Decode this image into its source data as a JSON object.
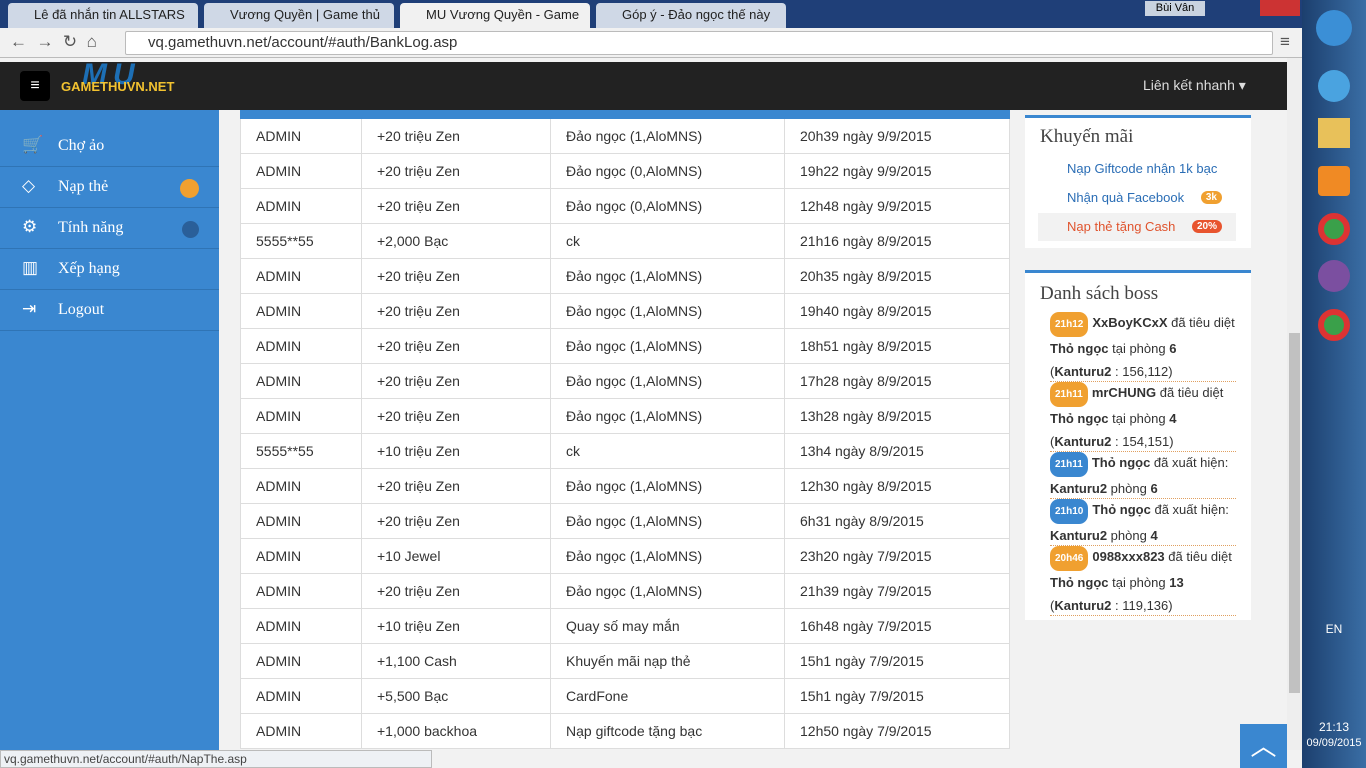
{
  "browser": {
    "tabs": [
      "Lê đã nhắn tin ALLSTARS",
      "Vương Quyền | Game thủ",
      "MU Vương Quyền - Game",
      "Góp ý - Đảo ngọc thế này"
    ],
    "user": "Bùi Vân",
    "url": "vq.gamethuvn.net/account/#auth/BankLog.asp",
    "status_url": "vq.gamethuvn.net/account/#auth/NapThe.asp"
  },
  "header": {
    "logo_top": "MU",
    "logo": "GAMETHUVN.NET",
    "quick_links": "Liên kết nhanh"
  },
  "sidebar": {
    "items": [
      "Chợ ảo",
      "Nạp thẻ",
      "Tính năng",
      "Xếp hạng",
      "Logout"
    ]
  },
  "table": {
    "rows": [
      [
        "ADMIN",
        "+20  triệu Zen",
        "Đảo ngọc (1,AloMNS)",
        "20h39 ngày 9/9/2015"
      ],
      [
        "ADMIN",
        "+20  triệu Zen",
        "Đảo ngọc (0,AloMNS)",
        "19h22 ngày 9/9/2015"
      ],
      [
        "ADMIN",
        "+20  triệu Zen",
        "Đảo ngọc (0,AloMNS)",
        "12h48 ngày 9/9/2015"
      ],
      [
        "5555**55",
        "+2,000  Bạc",
        "ck",
        "21h16 ngày 8/9/2015"
      ],
      [
        "ADMIN",
        "+20  triệu Zen",
        "Đảo ngọc (1,AloMNS)",
        "20h35 ngày 8/9/2015"
      ],
      [
        "ADMIN",
        "+20  triệu Zen",
        "Đảo ngọc (1,AloMNS)",
        "19h40 ngày 8/9/2015"
      ],
      [
        "ADMIN",
        "+20  triệu Zen",
        "Đảo ngọc (1,AloMNS)",
        "18h51 ngày 8/9/2015"
      ],
      [
        "ADMIN",
        "+20  triệu Zen",
        "Đảo ngọc (1,AloMNS)",
        "17h28 ngày 8/9/2015"
      ],
      [
        "ADMIN",
        "+20  triệu Zen",
        "Đảo ngọc (1,AloMNS)",
        "13h28 ngày 8/9/2015"
      ],
      [
        "5555**55",
        "+10  triệu Zen",
        "ck",
        "13h4 ngày 8/9/2015"
      ],
      [
        "ADMIN",
        "+20  triệu Zen",
        "Đảo ngọc (1,AloMNS)",
        "12h30 ngày 8/9/2015"
      ],
      [
        "ADMIN",
        "+20  triệu Zen",
        "Đảo ngọc (1,AloMNS)",
        "6h31 ngày 8/9/2015"
      ],
      [
        "ADMIN",
        "+10  Jewel",
        "Đảo ngọc (1,AloMNS)",
        "23h20 ngày 7/9/2015"
      ],
      [
        "ADMIN",
        "+20  triệu Zen",
        "Đảo ngọc (1,AloMNS)",
        "21h39 ngày 7/9/2015"
      ],
      [
        "ADMIN",
        "+10  triệu Zen",
        "Quay số may mắn",
        "16h48 ngày 7/9/2015"
      ],
      [
        "ADMIN",
        "+1,100  Cash",
        "Khuyến mãi nạp thẻ",
        "15h1 ngày 7/9/2015"
      ],
      [
        "ADMIN",
        "+5,500  Bạc",
        "CardFone",
        "15h1 ngày 7/9/2015"
      ],
      [
        "ADMIN",
        "+1,000  backhoa",
        "Nạp giftcode tặng bạc",
        "12h50 ngày 7/9/2015"
      ]
    ]
  },
  "promotions": {
    "title": "Khuyến mãi",
    "items": [
      {
        "label": "Nạp Giftcode nhận 1k bạc"
      },
      {
        "label": "Nhận quà Facebook",
        "badge": "3k"
      },
      {
        "label": "Nạp thẻ tặng Cash",
        "badge": "20%"
      }
    ]
  },
  "boss": {
    "title": "Danh sách boss",
    "entries": [
      {
        "time": "21h12",
        "color": "#f0a030",
        "parts": [
          {
            "text": "XxBoyKCxX",
            "bold": true
          },
          {
            "text": " đã tiêu diệt ",
            "bold": false
          },
          {
            "text": "Thỏ ngọc",
            "bold": true
          },
          {
            "text": " tại phòng ",
            "bold": false
          },
          {
            "text": "6",
            "bold": true
          },
          {
            "text": " (",
            "bold": false
          },
          {
            "text": "Kanturu2",
            "bold": true
          },
          {
            "text": " : 156,112)",
            "bold": false
          }
        ]
      },
      {
        "time": "21h11",
        "color": "#f0a030",
        "parts": [
          {
            "text": "mrCHUNG",
            "bold": true
          },
          {
            "text": " đã tiêu diệt ",
            "bold": false
          },
          {
            "text": "Thỏ ngọc",
            "bold": true
          },
          {
            "text": " tại phòng ",
            "bold": false
          },
          {
            "text": "4",
            "bold": true
          },
          {
            "text": " (",
            "bold": false
          },
          {
            "text": "Kanturu2",
            "bold": true
          },
          {
            "text": " : 154,151)",
            "bold": false
          }
        ]
      },
      {
        "time": "21h11",
        "color": "#3a87d0",
        "parts": [
          {
            "text": "Thỏ ngọc",
            "bold": true
          },
          {
            "text": " đã xuất hiện: ",
            "bold": false
          },
          {
            "text": "Kanturu2",
            "bold": true
          },
          {
            "text": " phòng ",
            "bold": false
          },
          {
            "text": "6",
            "bold": true
          }
        ]
      },
      {
        "time": "21h10",
        "color": "#3a87d0",
        "parts": [
          {
            "text": "Thỏ ngọc",
            "bold": true
          },
          {
            "text": " đã xuất hiện: ",
            "bold": false
          },
          {
            "text": "Kanturu2",
            "bold": true
          },
          {
            "text": " phòng ",
            "bold": false
          },
          {
            "text": "4",
            "bold": true
          }
        ]
      },
      {
        "time": "20h46",
        "color": "#f0a030",
        "parts": [
          {
            "text": "0988xxx823",
            "bold": true
          },
          {
            "text": " đã tiêu diệt ",
            "bold": false
          },
          {
            "text": "Thỏ ngọc",
            "bold": true
          },
          {
            "text": " tại phòng ",
            "bold": false
          },
          {
            "text": "13",
            "bold": true
          },
          {
            "text": " (",
            "bold": false
          },
          {
            "text": "Kanturu2",
            "bold": true
          },
          {
            "text": " : 119,136)",
            "bold": false
          }
        ]
      }
    ]
  },
  "taskbar": {
    "lang": "EN",
    "time": "21:13",
    "date": "09/09/2015"
  }
}
